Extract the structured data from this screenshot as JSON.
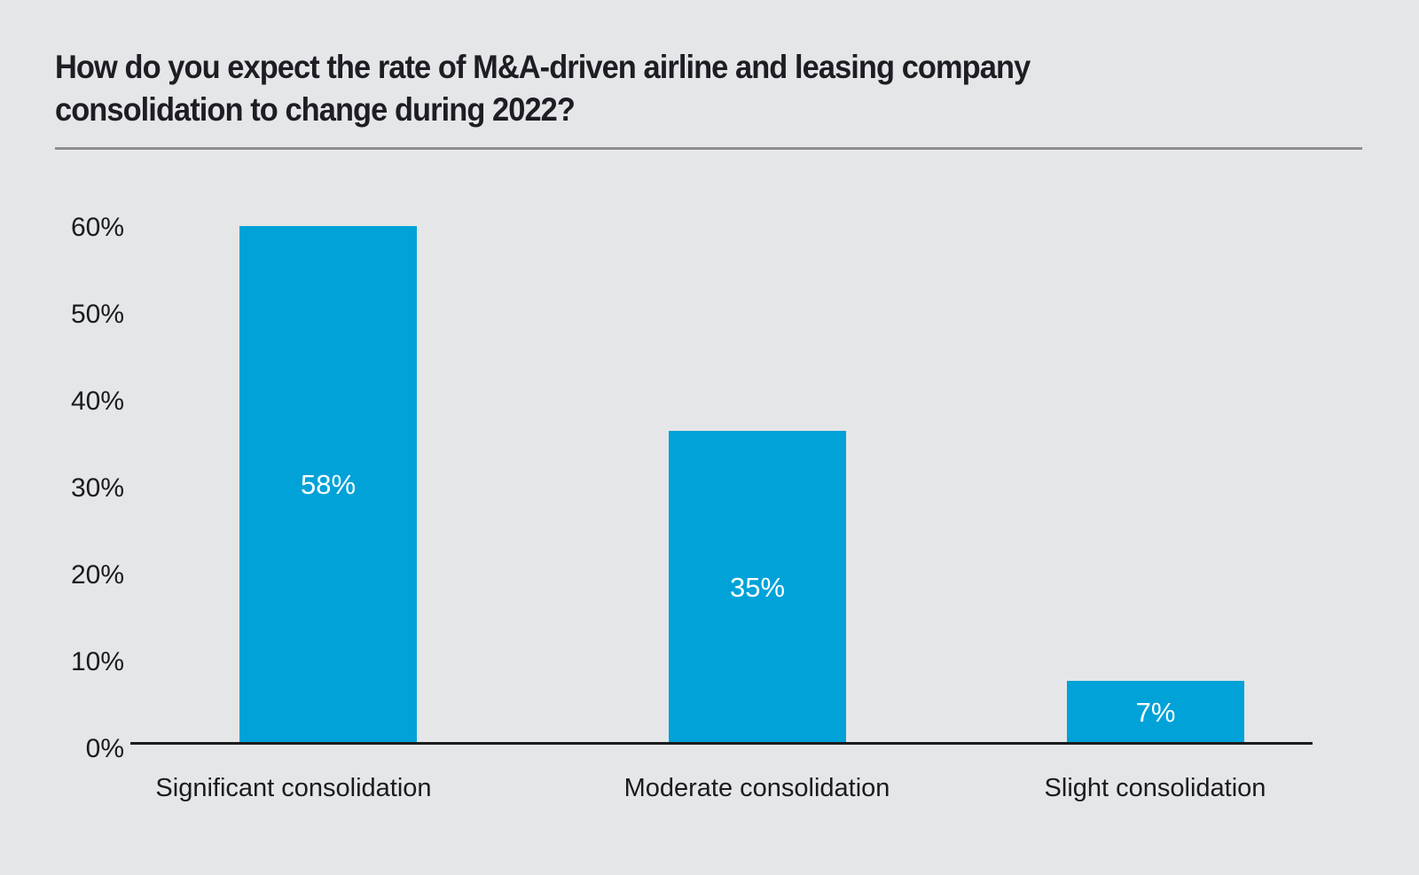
{
  "title": "How do you expect the rate of M&A-driven airline and leasing company consolidation to change during 2022?",
  "colors": {
    "background": "#e5e6e8",
    "bar": "#00a2d8",
    "title_text": "#1d1d23",
    "axis_text": "#1b1b1f",
    "axis_line": "#1c1c1c",
    "separator": "#8d8d91",
    "value_label_text": "#ffffff"
  },
  "chart_data": {
    "type": "bar",
    "title": "How do you expect the rate of M&A-driven airline and leasing company consolidation to change during 2022?",
    "categories": [
      "Significant consolidation",
      "Moderate consolidation",
      "Slight consolidation"
    ],
    "values": [
      58,
      35,
      7
    ],
    "value_labels": [
      "58%",
      "35%",
      "7%"
    ],
    "xlabel": "",
    "ylabel": "",
    "ylim": [
      0,
      60
    ],
    "yticks": [
      "0%",
      "10%",
      "20%",
      "30%",
      "40%",
      "50%",
      "60%"
    ],
    "grid": false,
    "legend": false,
    "bar_color": "#00a2d8",
    "value_label_position": "inside-center"
  }
}
